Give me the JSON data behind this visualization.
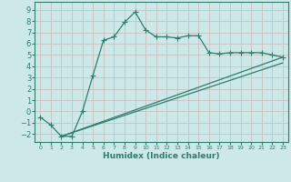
{
  "xlabel": "Humidex (Indice chaleur)",
  "ylabel": "",
  "bg_color": "#cce8e8",
  "grid_color": "#b0d0d0",
  "line_color": "#2e7d6e",
  "xlim": [
    -0.5,
    23.5
  ],
  "ylim": [
    -2.7,
    9.7
  ],
  "yticks": [
    -2,
    -1,
    0,
    1,
    2,
    3,
    4,
    5,
    6,
    7,
    8,
    9
  ],
  "xticks": [
    0,
    1,
    2,
    3,
    4,
    5,
    6,
    7,
    8,
    9,
    10,
    11,
    12,
    13,
    14,
    15,
    16,
    17,
    18,
    19,
    20,
    21,
    22,
    23
  ],
  "main_x": [
    0,
    1,
    2,
    3,
    4,
    5,
    6,
    7,
    8,
    9,
    10,
    11,
    12,
    13,
    14,
    15,
    16,
    17,
    18,
    19,
    20,
    21,
    22,
    23
  ],
  "main_y": [
    -0.5,
    -1.2,
    -2.2,
    -2.2,
    0.0,
    3.2,
    6.3,
    6.6,
    7.9,
    8.8,
    7.2,
    6.6,
    6.6,
    6.5,
    6.7,
    6.7,
    5.2,
    5.1,
    5.2,
    5.2,
    5.2,
    5.2,
    5.0,
    4.8
  ],
  "line1_x": [
    2,
    23
  ],
  "line1_y": [
    -2.2,
    4.8
  ],
  "line2_x": [
    2,
    23
  ],
  "line2_y": [
    -2.2,
    4.3
  ],
  "marker_size": 3,
  "line_width": 0.9,
  "font_size_label": 6.5,
  "font_size_tick_x": 4.5,
  "font_size_tick_y": 6
}
